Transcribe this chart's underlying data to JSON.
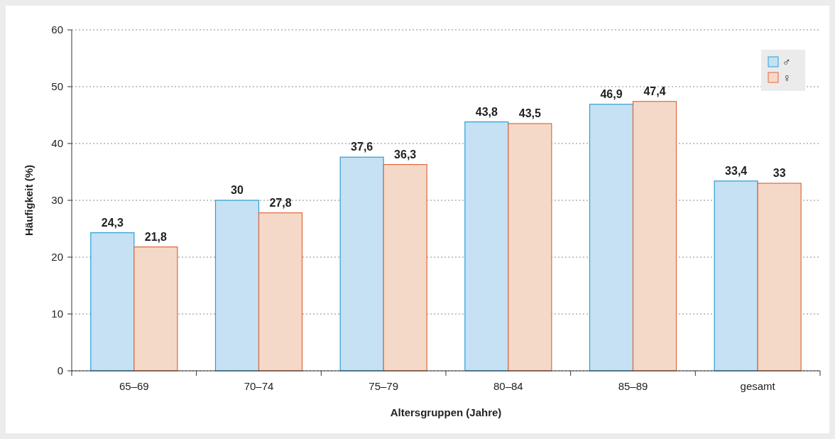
{
  "chart_data": {
    "type": "bar",
    "xlabel": "Altersgruppen (Jahre)",
    "ylabel": "Häufigkeit (%)",
    "categories": [
      "65–69",
      "70–74",
      "75–79",
      "80–84",
      "85–89",
      "gesamt"
    ],
    "series": [
      {
        "name": "♂",
        "color": "#c6e1f4",
        "values": [
          24.3,
          30,
          37.6,
          43.8,
          46.9,
          33.4
        ],
        "value_labels": [
          "24,3",
          "30",
          "37,6",
          "43,8",
          "46,9",
          "33,4"
        ]
      },
      {
        "name": "♀",
        "color": "#f5d9c8",
        "values": [
          21.8,
          27.8,
          36.3,
          43.5,
          47.4,
          33
        ],
        "value_labels": [
          "21,8",
          "27,8",
          "36,3",
          "43,5",
          "47,4",
          "33"
        ]
      }
    ],
    "ylim": [
      0,
      60
    ],
    "yticks": [
      0,
      10,
      20,
      30,
      40,
      50,
      60
    ],
    "grid": "y",
    "legend": "top right"
  }
}
